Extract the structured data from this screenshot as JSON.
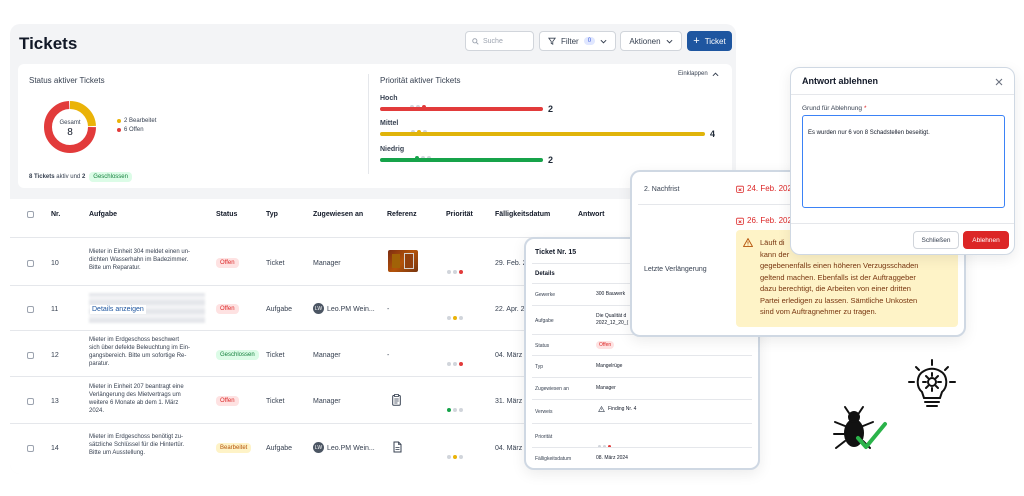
{
  "header": {
    "title": "Tickets",
    "search_placeholder": "Suche",
    "filter_label": "Filter",
    "filter_count": "0",
    "actions_label": "Aktionen",
    "new_ticket_label": "Ticket"
  },
  "status_card": {
    "title": "Status aktiver Tickets",
    "donut_label": "Gesamt",
    "donut_value": "8",
    "legend": [
      {
        "label": "2 Bearbeitet",
        "color": "#eab308",
        "value": 2
      },
      {
        "label": "6 Offen",
        "color": "#e23b3b",
        "value": 6
      }
    ],
    "footer_prefix": "8 Tickets",
    "footer_mid": " aktiv und ",
    "footer_count": "2",
    "footer_badge": "Geschlossen"
  },
  "priority_card": {
    "title": "Priorität aktiver Tickets",
    "collapse_label": "Einklappen",
    "items": [
      {
        "label": "Hoch",
        "value": "2",
        "fraction": 0.5,
        "color": "#e23b3b"
      },
      {
        "label": "Mittel",
        "value": "4",
        "fraction": 1.0,
        "color": "#e0b40a"
      },
      {
        "label": "Niedrig",
        "value": "2",
        "fraction": 0.5,
        "color": "#16a34a"
      }
    ]
  },
  "table": {
    "headers": {
      "nr": "Nr.",
      "task": "Aufgabe",
      "status": "Status",
      "type": "Typ",
      "assigned": "Zugewiesen an",
      "ref": "Referenz",
      "priority": "Priorität",
      "due": "Fälligkeitsdatum",
      "answer": "Antwort"
    },
    "rows": [
      {
        "nr": "10",
        "task": "Mieter in Einheit 304 meldet einen un-\ndichten Wasserhahn im Badezimmer.\nBitte um Reparatur.",
        "status": "Offen",
        "type": "Ticket",
        "assigned": "Manager",
        "due": "29. Feb. 2"
      },
      {
        "nr": "11",
        "task": "Details anzeigen",
        "status": "Offen",
        "type": "Aufgabe",
        "assigned": "Leo.PM Wein...",
        "assigned_initials": "LW",
        "ref": "-",
        "due": "22. Apr. 2"
      },
      {
        "nr": "12",
        "task": "Mieter im Erdgeschoss beschwert\nsich über defekte Beleuchtung im Ein-\ngangsbereich. Bitte um sofortige Re-\nparatur.",
        "status": "Geschlossen",
        "type": "Ticket",
        "assigned": "Manager",
        "ref": "-",
        "due": "04. März"
      },
      {
        "nr": "13",
        "task": "Mieter in Einheit 207 beantragt eine\nVerlängerung des Mietvertrags um\nweitere 6 Monate ab dem 1. März\n2024.",
        "status": "Offen",
        "type": "Ticket",
        "assigned": "Manager",
        "due": "31. März"
      },
      {
        "nr": "14",
        "task": "Mieter im Erdgeschoss benötigt zu-\nsätzliche Schlüssel für die Hintertür.\nBitte um Ausstellung.",
        "status": "Bearbeitet",
        "type": "Aufgabe",
        "assigned": "Leo.PM Wein...",
        "assigned_initials": "LW",
        "due": "04. März"
      }
    ]
  },
  "ticket_detail": {
    "title": "Ticket Nr. 15",
    "section": "Details",
    "fields": [
      {
        "label": "Gewerke",
        "value": "300 Bauwerk"
      },
      {
        "label": "Aufgabe",
        "value": "Die Qualität d\n2022_12_20_("
      },
      {
        "label": "Status",
        "value": "Offen"
      },
      {
        "label": "Typ",
        "value": "Mangelrüge"
      },
      {
        "label": "Zugewiesen an",
        "value": "Manager"
      },
      {
        "label": "Verweis",
        "value": "Finding Nr. 4"
      },
      {
        "label": "Priorität",
        "value": ""
      },
      {
        "label": "Fälligkeitsdatum",
        "value": "08. März 2024"
      }
    ]
  },
  "deadline_panel": {
    "row1_label": "2. Nachfrist",
    "row1_date": "24. Feb. 202",
    "row2_date": "26. Feb. 202",
    "row3_label": "Letzte Verlängerung",
    "warning_text": "Läuft di\nkann der\ngegebenenfalls einen höheren Verzugsschaden\ngeltend machen. Ebenfalls ist der Auftraggeber\ndazu berechtigt, die Arbeiten von einer dritten\nPartei erledigen zu lassen. Sämtliche Unkosten\nsind vom Auftragnehmer zu tragen."
  },
  "reject_dialog": {
    "title": "Antwort ablehnen",
    "field_label": "Grund für Ablehnung",
    "required_mark": "*",
    "textarea_value": "Es wurden nur 6 von 8 Schadstellen beseitigt.",
    "close_label": "Schließen",
    "reject_label": "Ablehnen"
  },
  "colors": {
    "brand": "#1e56a0",
    "danger": "#dc2626",
    "open": "#e23b3b",
    "in_progress": "#eab308",
    "low": "#16a34a"
  }
}
